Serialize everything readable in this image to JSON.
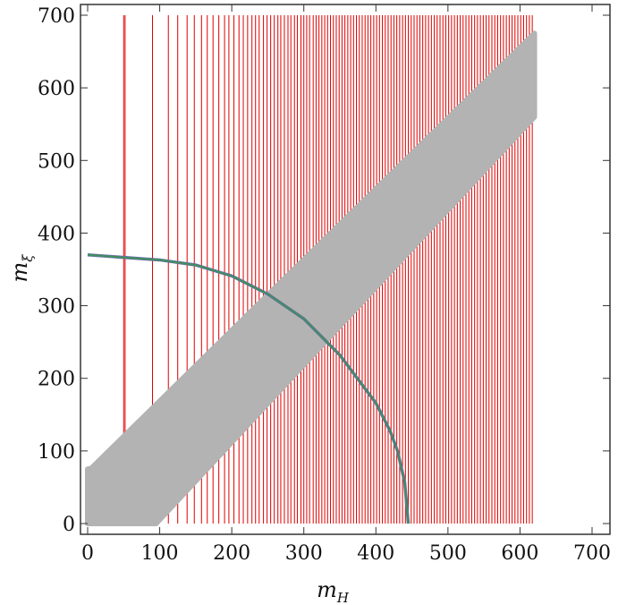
{
  "chart_data": {
    "type": "scatter",
    "title": "",
    "xlabel": {
      "base": "m",
      "sub": "H"
    },
    "ylabel": {
      "base": "m",
      "sub": "ξ"
    },
    "xlim": [
      0,
      700
    ],
    "ylim": [
      0,
      700
    ],
    "x_ticks": [
      0,
      100,
      200,
      300,
      400,
      500,
      600,
      700
    ],
    "y_ticks": [
      0,
      100,
      200,
      300,
      400,
      500,
      600,
      700
    ],
    "grid": false,
    "colors": {
      "red_region": "#dd0000",
      "gray_band": "#b3b3b3",
      "curve": "#3f8f5f",
      "curve_edge": "#6e6ea8"
    },
    "series": [
      {
        "kind": "band",
        "color": "#b3b3b3",
        "upper": [
          [
            0,
            75
          ],
          [
            5,
            76
          ],
          [
            620,
            675
          ]
        ],
        "lower": [
          [
            0,
            0
          ],
          [
            95,
            0
          ],
          [
            620,
            560
          ]
        ]
      },
      {
        "kind": "curve",
        "color": "#3f8f5f",
        "points": [
          [
            0,
            370
          ],
          [
            100,
            363
          ],
          [
            150,
            356
          ],
          [
            200,
            341
          ],
          [
            250,
            316
          ],
          [
            300,
            282
          ],
          [
            350,
            232
          ],
          [
            400,
            166
          ],
          [
            420,
            127
          ],
          [
            430,
            100
          ],
          [
            440,
            57
          ],
          [
            445,
            0
          ]
        ]
      },
      {
        "kind": "vertical_lines",
        "color": "#dd0000",
        "y_range": [
          0,
          700
        ],
        "x_positions": [
          50,
          52,
          90,
          112,
          125,
          138,
          148,
          158,
          166,
          174,
          182,
          190,
          196,
          203,
          210,
          216,
          222,
          228,
          233,
          238,
          244,
          249,
          254,
          259,
          264,
          268,
          273,
          278,
          282,
          287,
          291,
          296,
          300,
          304,
          308,
          313,
          317,
          321,
          325,
          329,
          333,
          337,
          341,
          345,
          349,
          353,
          357,
          361,
          365,
          369,
          373,
          377,
          381,
          385,
          389,
          393,
          397,
          401,
          405,
          409,
          413,
          417,
          421,
          425,
          429,
          433,
          437,
          441,
          445,
          449,
          453,
          457,
          461,
          465,
          469,
          473,
          477,
          481,
          485,
          489,
          493,
          497,
          501,
          505,
          509,
          513,
          517,
          521,
          525,
          529,
          533,
          537,
          541,
          545,
          549,
          553,
          557,
          561,
          565,
          569,
          573,
          577,
          581,
          585,
          589,
          593,
          597,
          601,
          605,
          609,
          613,
          617
        ]
      }
    ]
  }
}
